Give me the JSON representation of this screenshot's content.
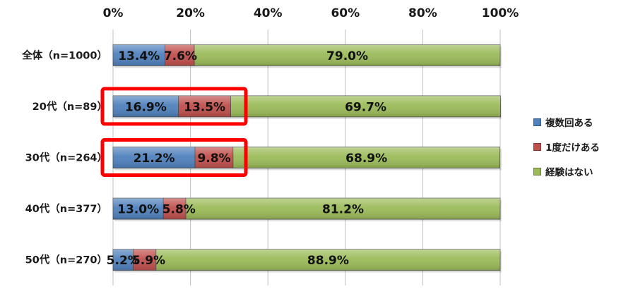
{
  "chart_data": {
    "type": "bar",
    "orientation": "horizontal",
    "stacked": true,
    "categories": [
      "全体（n=1000）",
      "20代（n=89）",
      "30代（n=264）",
      "40代（n=377）",
      "50代（n=270）"
    ],
    "series": [
      {
        "name": "複数回ある",
        "color": "#4f81bd",
        "values": [
          13.4,
          16.9,
          21.2,
          13.0,
          5.2
        ]
      },
      {
        "name": "1度だけある",
        "color": "#c0504d",
        "values": [
          7.6,
          13.5,
          9.8,
          5.8,
          5.9
        ]
      },
      {
        "name": "経験はない",
        "color": "#9bbb59",
        "values": [
          79.0,
          69.7,
          68.9,
          81.2,
          88.9
        ]
      }
    ],
    "data_labels": [
      [
        "13.4%",
        "7.6%",
        "79.0%"
      ],
      [
        "16.9%",
        "13.5%",
        "69.7%"
      ],
      [
        "21.2%",
        "9.8%",
        "68.9%"
      ],
      [
        "13.0%",
        "5.8%",
        "81.2%"
      ],
      [
        "5.2%",
        "5.9%",
        "88.9%"
      ]
    ],
    "xaxis": {
      "ticks": [
        "0%",
        "20%",
        "40%",
        "60%",
        "80%",
        "100%"
      ],
      "min": 0,
      "max": 100,
      "position": "top"
    },
    "gridlines": true,
    "legend_position": "right",
    "highlighted_categories": [
      1,
      2
    ],
    "highlight_color": "#ff0000"
  }
}
